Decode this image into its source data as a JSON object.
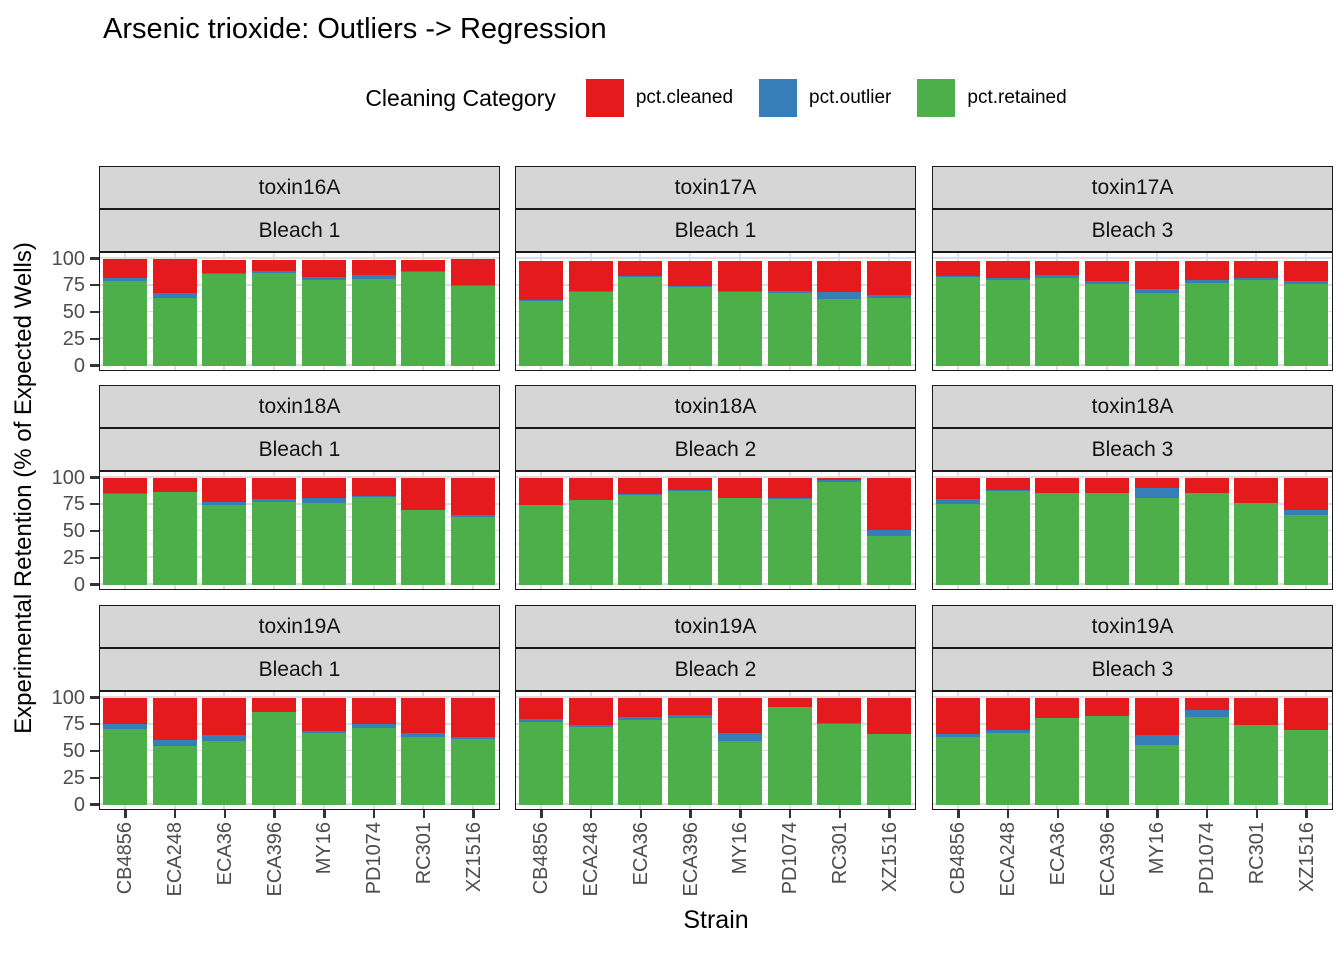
{
  "title": "Arsenic trioxide: Outliers -> Regression",
  "chart_data": {
    "type": "bar",
    "stacked": true,
    "title": "Arsenic trioxide: Outliers -> Regression",
    "legend_title": "Cleaning Category",
    "legend_position": "top",
    "xlabel": "Strain",
    "ylabel": "Experimental Retention (% of Expected Wells)",
    "ylim": [
      0,
      100
    ],
    "y_ticks": [
      100,
      75,
      50,
      25,
      0
    ],
    "grid": true,
    "categories": [
      "CB4856",
      "ECA248",
      "ECA36",
      "ECA396",
      "MY16",
      "PD1074",
      "RC301",
      "XZ1516"
    ],
    "series": [
      {
        "key": "cleaned",
        "name": "pct.cleaned",
        "color": "#E41A1C"
      },
      {
        "key": "outlier",
        "name": "pct.outlier",
        "color": "#377EB8"
      },
      {
        "key": "retained",
        "name": "pct.retained",
        "color": "#4DAF4A"
      }
    ],
    "facets": [
      {
        "toxin": "toxin16A",
        "bleach": "Bleach 1",
        "retained": [
          79,
          64,
          86,
          87,
          80,
          81,
          88,
          75
        ],
        "outlier": [
          3,
          4,
          1,
          2,
          3,
          4,
          1,
          1
        ],
        "cleaned": [
          18,
          32,
          12,
          10,
          16,
          14,
          10,
          24
        ]
      },
      {
        "toxin": "toxin17A",
        "bleach": "Bleach 1",
        "retained": [
          61,
          69,
          83,
          74,
          69,
          68,
          63,
          64
        ],
        "outlier": [
          1,
          1,
          1,
          1,
          1,
          2,
          6,
          2
        ],
        "cleaned": [
          36,
          28,
          14,
          23,
          28,
          28,
          29,
          32
        ]
      },
      {
        "toxin": "toxin17A",
        "bleach": "Bleach 3",
        "retained": [
          83,
          80,
          82,
          77,
          68,
          78,
          80,
          77
        ],
        "outlier": [
          1,
          2,
          3,
          2,
          4,
          2,
          2,
          2
        ],
        "cleaned": [
          14,
          16,
          13,
          19,
          26,
          18,
          16,
          19
        ]
      },
      {
        "toxin": "toxin18A",
        "bleach": "Bleach 1",
        "retained": [
          85,
          87,
          75,
          78,
          77,
          82,
          70,
          64
        ],
        "outlier": [
          1,
          0,
          3,
          2,
          4,
          1,
          0,
          1
        ],
        "cleaned": [
          14,
          13,
          22,
          20,
          19,
          17,
          30,
          35
        ]
      },
      {
        "toxin": "toxin18A",
        "bleach": "Bleach 2",
        "retained": [
          75,
          79,
          84,
          88,
          81,
          80,
          96,
          46
        ],
        "outlier": [
          0,
          0,
          1,
          1,
          0,
          1,
          2,
          5
        ],
        "cleaned": [
          25,
          21,
          15,
          11,
          19,
          19,
          2,
          49
        ]
      },
      {
        "toxin": "toxin18A",
        "bleach": "Bleach 3",
        "retained": [
          76,
          88,
          86,
          86,
          81,
          86,
          77,
          65
        ],
        "outlier": [
          4,
          1,
          0,
          0,
          10,
          0,
          0,
          5
        ],
        "cleaned": [
          20,
          11,
          14,
          14,
          9,
          14,
          23,
          30
        ]
      },
      {
        "toxin": "toxin19A",
        "bleach": "Bleach 1",
        "retained": [
          71,
          55,
          60,
          87,
          67,
          72,
          64,
          62
        ],
        "outlier": [
          5,
          6,
          5,
          0,
          2,
          4,
          3,
          2
        ],
        "cleaned": [
          24,
          39,
          35,
          13,
          31,
          24,
          33,
          36
        ]
      },
      {
        "toxin": "toxin19A",
        "bleach": "Bleach 2",
        "retained": [
          78,
          73,
          79,
          81,
          60,
          92,
          76,
          66
        ],
        "outlier": [
          2,
          2,
          3,
          3,
          7,
          0,
          1,
          0
        ],
        "cleaned": [
          20,
          25,
          18,
          16,
          33,
          8,
          23,
          34
        ]
      },
      {
        "toxin": "toxin19A",
        "bleach": "Bleach 3",
        "retained": [
          64,
          67,
          81,
          83,
          56,
          82,
          75,
          70
        ],
        "outlier": [
          2,
          3,
          0,
          0,
          9,
          7,
          0,
          0
        ],
        "cleaned": [
          34,
          30,
          19,
          17,
          35,
          11,
          25,
          30
        ]
      }
    ]
  }
}
